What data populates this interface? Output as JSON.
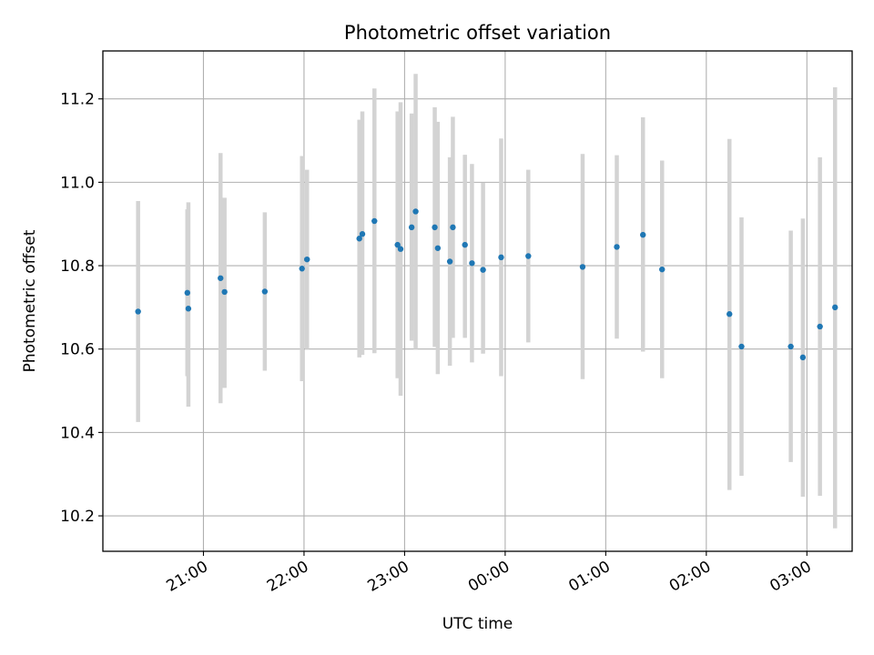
{
  "chart_data": {
    "type": "scatter",
    "title": "Photometric offset variation",
    "xlabel": "UTC time",
    "ylabel": "Photometric offset",
    "x_unit": "hours since 20:00 UTC",
    "xlim": [
      0.0,
      7.45
    ],
    "ylim": [
      10.115,
      11.315
    ],
    "grid": true,
    "x_ticks": [
      {
        "value": 1,
        "label": "21:00"
      },
      {
        "value": 2,
        "label": "22:00"
      },
      {
        "value": 3,
        "label": "23:00"
      },
      {
        "value": 4,
        "label": "00:00"
      },
      {
        "value": 5,
        "label": "01:00"
      },
      {
        "value": 6,
        "label": "02:00"
      },
      {
        "value": 7,
        "label": "03:00"
      }
    ],
    "y_ticks": [
      {
        "value": 10.2,
        "label": "10.2"
      },
      {
        "value": 10.4,
        "label": "10.4"
      },
      {
        "value": 10.6,
        "label": "10.6"
      },
      {
        "value": 10.8,
        "label": "10.8"
      },
      {
        "value": 11.0,
        "label": "11.0"
      },
      {
        "value": 11.2,
        "label": "11.2"
      }
    ],
    "point_color": "#1f77b4",
    "errorbar_color": "#d3d3d3",
    "points": [
      {
        "x": 0.35,
        "y": 10.69,
        "lo": 10.425,
        "hi": 10.955
      },
      {
        "x": 0.84,
        "y": 10.735,
        "lo": 10.535,
        "hi": 10.935
      },
      {
        "x": 0.85,
        "y": 10.697,
        "lo": 10.462,
        "hi": 10.952
      },
      {
        "x": 1.17,
        "y": 10.77,
        "lo": 10.47,
        "hi": 11.07
      },
      {
        "x": 1.21,
        "y": 10.737,
        "lo": 10.507,
        "hi": 10.963
      },
      {
        "x": 1.61,
        "y": 10.738,
        "lo": 10.548,
        "hi": 10.928
      },
      {
        "x": 1.98,
        "y": 10.793,
        "lo": 10.523,
        "hi": 11.063
      },
      {
        "x": 2.03,
        "y": 10.815,
        "lo": 10.6,
        "hi": 11.03
      },
      {
        "x": 2.55,
        "y": 10.865,
        "lo": 10.58,
        "hi": 11.15
      },
      {
        "x": 2.58,
        "y": 10.876,
        "lo": 10.586,
        "hi": 11.17
      },
      {
        "x": 2.7,
        "y": 10.907,
        "lo": 10.59,
        "hi": 11.225
      },
      {
        "x": 2.93,
        "y": 10.85,
        "lo": 10.53,
        "hi": 11.17
      },
      {
        "x": 2.96,
        "y": 10.84,
        "lo": 10.488,
        "hi": 11.192
      },
      {
        "x": 3.07,
        "y": 10.892,
        "lo": 10.62,
        "hi": 11.165
      },
      {
        "x": 3.11,
        "y": 10.93,
        "lo": 10.6,
        "hi": 11.26
      },
      {
        "x": 3.3,
        "y": 10.892,
        "lo": 10.605,
        "hi": 11.18
      },
      {
        "x": 3.33,
        "y": 10.842,
        "lo": 10.54,
        "hi": 11.145
      },
      {
        "x": 3.45,
        "y": 10.81,
        "lo": 10.56,
        "hi": 11.06
      },
      {
        "x": 3.48,
        "y": 10.892,
        "lo": 10.627,
        "hi": 11.157
      },
      {
        "x": 3.6,
        "y": 10.85,
        "lo": 10.627,
        "hi": 11.066
      },
      {
        "x": 3.67,
        "y": 10.806,
        "lo": 10.568,
        "hi": 11.044
      },
      {
        "x": 3.78,
        "y": 10.79,
        "lo": 10.589,
        "hi": 10.999
      },
      {
        "x": 3.96,
        "y": 10.82,
        "lo": 10.535,
        "hi": 11.105
      },
      {
        "x": 4.23,
        "y": 10.823,
        "lo": 10.616,
        "hi": 11.03
      },
      {
        "x": 4.77,
        "y": 10.797,
        "lo": 10.528,
        "hi": 11.068
      },
      {
        "x": 5.11,
        "y": 10.845,
        "lo": 10.625,
        "hi": 11.065
      },
      {
        "x": 5.37,
        "y": 10.874,
        "lo": 10.594,
        "hi": 11.156
      },
      {
        "x": 5.56,
        "y": 10.791,
        "lo": 10.53,
        "hi": 11.052
      },
      {
        "x": 6.23,
        "y": 10.684,
        "lo": 10.262,
        "hi": 11.104
      },
      {
        "x": 6.35,
        "y": 10.606,
        "lo": 10.296,
        "hi": 10.916
      },
      {
        "x": 6.84,
        "y": 10.606,
        "lo": 10.329,
        "hi": 10.884
      },
      {
        "x": 6.96,
        "y": 10.58,
        "lo": 10.246,
        "hi": 10.913
      },
      {
        "x": 7.13,
        "y": 10.654,
        "lo": 10.248,
        "hi": 11.06
      },
      {
        "x": 7.28,
        "y": 10.7,
        "lo": 10.17,
        "hi": 11.228
      }
    ]
  }
}
